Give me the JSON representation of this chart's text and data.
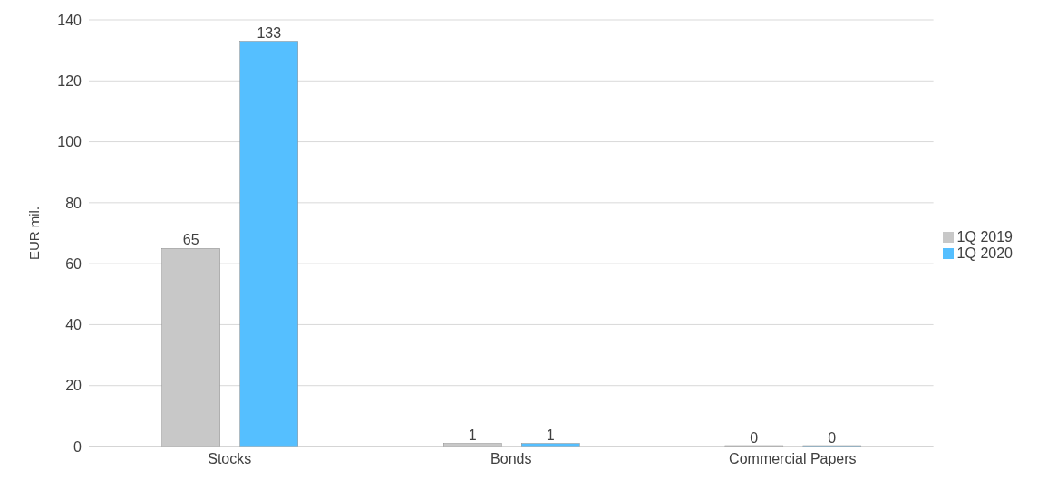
{
  "chart_data": {
    "type": "bar",
    "ylabel": "EUR mil.",
    "categories": [
      "Stocks",
      "Bonds",
      "Commercial Papers"
    ],
    "series": [
      {
        "name": "1Q 2019",
        "color": "#c8c8c8",
        "values": [
          65,
          1,
          0
        ]
      },
      {
        "name": "1Q 2020",
        "color": "#55bfff",
        "values": [
          133,
          1,
          0
        ]
      }
    ],
    "ylim": [
      0,
      140
    ],
    "yticks": [
      0,
      20,
      40,
      60,
      80,
      100,
      120,
      140
    ],
    "grid": "y",
    "legend": "right",
    "data_labels": true
  }
}
